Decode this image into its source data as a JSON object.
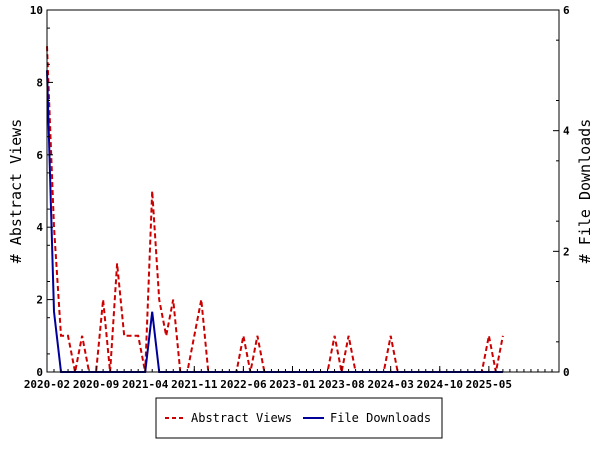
{
  "chart_data": {
    "type": "line",
    "x_ticks": [
      "2020-02",
      "2020-09",
      "2021-04",
      "2021-11",
      "2022-06",
      "2023-01",
      "2023-08",
      "2024-03",
      "2024-10",
      "2025-05"
    ],
    "y_left": {
      "label": "# Abstract Views",
      "ticks": [
        "0",
        "2",
        "4",
        "6",
        "8",
        "10"
      ],
      "lim": [
        0,
        10
      ]
    },
    "y_right": {
      "label": "# File Downloads",
      "ticks": [
        "0",
        "2",
        "4",
        "6"
      ],
      "lim": [
        0,
        6
      ]
    },
    "series": [
      {
        "name": "Abstract Views",
        "axis": "left",
        "color": "#cc0000",
        "style": "dashed",
        "x": [
          "2020-02",
          "2020-03",
          "2020-04",
          "2020-05",
          "2020-06",
          "2020-07",
          "2020-08",
          "2020-09",
          "2020-10",
          "2020-11",
          "2020-12",
          "2021-01",
          "2021-02",
          "2021-03",
          "2021-04",
          "2021-05",
          "2021-06",
          "2021-07",
          "2021-08",
          "2021-09",
          "2021-10",
          "2021-11",
          "2021-12",
          "2022-01",
          "2022-02",
          "2022-03",
          "2022-04",
          "2022-05",
          "2022-06",
          "2022-07",
          "2022-08",
          "2022-09",
          "2022-10",
          "2022-11",
          "2022-12",
          "2023-01",
          "2023-02",
          "2023-03",
          "2023-04",
          "2023-05",
          "2023-06",
          "2023-07",
          "2023-08",
          "2023-09",
          "2023-10",
          "2023-11",
          "2023-12",
          "2024-01",
          "2024-02",
          "2024-03",
          "2024-04",
          "2024-05",
          "2024-06",
          "2024-07",
          "2024-08",
          "2024-09",
          "2024-10",
          "2024-11",
          "2024-12",
          "2025-01",
          "2025-02",
          "2025-03",
          "2025-04",
          "2025-05",
          "2025-06",
          "2025-07"
        ],
        "values": [
          9,
          4,
          1,
          1,
          0,
          1,
          0,
          0,
          2,
          0,
          3,
          1,
          1,
          1,
          0,
          5,
          2,
          1,
          2,
          0,
          0,
          1,
          2,
          0,
          0,
          0,
          0,
          0,
          1,
          0,
          1,
          0,
          0,
          0,
          0,
          0,
          0,
          0,
          0,
          0,
          0,
          1,
          0,
          1,
          0,
          0,
          0,
          0,
          0,
          1,
          0,
          0,
          0,
          0,
          0,
          0,
          0,
          0,
          0,
          0,
          0,
          0,
          0,
          1,
          0,
          1
        ]
      },
      {
        "name": "File Downloads",
        "axis": "right",
        "color": "#000099",
        "style": "solid",
        "x": [
          "2020-02",
          "2020-03",
          "2020-04",
          "2020-05",
          "2020-06",
          "2020-07",
          "2020-08",
          "2020-09",
          "2020-10",
          "2020-11",
          "2020-12",
          "2021-01",
          "2021-02",
          "2021-03",
          "2021-04",
          "2021-05",
          "2021-06",
          "2021-07",
          "2021-08",
          "2021-09",
          "2021-10",
          "2021-11",
          "2021-12",
          "2022-01",
          "2022-02",
          "2022-03",
          "2022-04",
          "2022-05",
          "2022-06",
          "2022-07",
          "2022-08",
          "2022-09",
          "2022-10",
          "2022-11",
          "2022-12",
          "2023-01",
          "2023-02",
          "2023-03",
          "2023-04",
          "2023-05",
          "2023-06",
          "2023-07",
          "2023-08",
          "2023-09",
          "2023-10",
          "2023-11",
          "2023-12",
          "2024-01",
          "2024-02",
          "2024-03",
          "2024-04",
          "2024-05",
          "2024-06",
          "2024-07",
          "2024-08",
          "2024-09",
          "2024-10",
          "2024-11",
          "2024-12",
          "2025-01",
          "2025-02",
          "2025-03",
          "2025-04",
          "2025-05",
          "2025-06",
          "2025-07"
        ],
        "values": [
          5,
          1,
          0,
          0,
          0,
          0,
          0,
          0,
          0,
          0,
          0,
          0,
          0,
          0,
          0,
          1,
          0,
          0,
          0,
          0,
          0,
          0,
          0,
          0,
          0,
          0,
          0,
          0,
          0,
          0,
          0,
          0,
          0,
          0,
          0,
          0,
          0,
          0,
          0,
          0,
          0,
          0,
          0,
          0,
          0,
          0,
          0,
          0,
          0,
          0,
          0,
          0,
          0,
          0,
          0,
          0,
          0,
          0,
          0,
          0,
          0,
          0,
          0,
          0,
          0,
          0
        ]
      }
    ],
    "legend": {
      "placement": "bottom"
    },
    "grid": false
  }
}
